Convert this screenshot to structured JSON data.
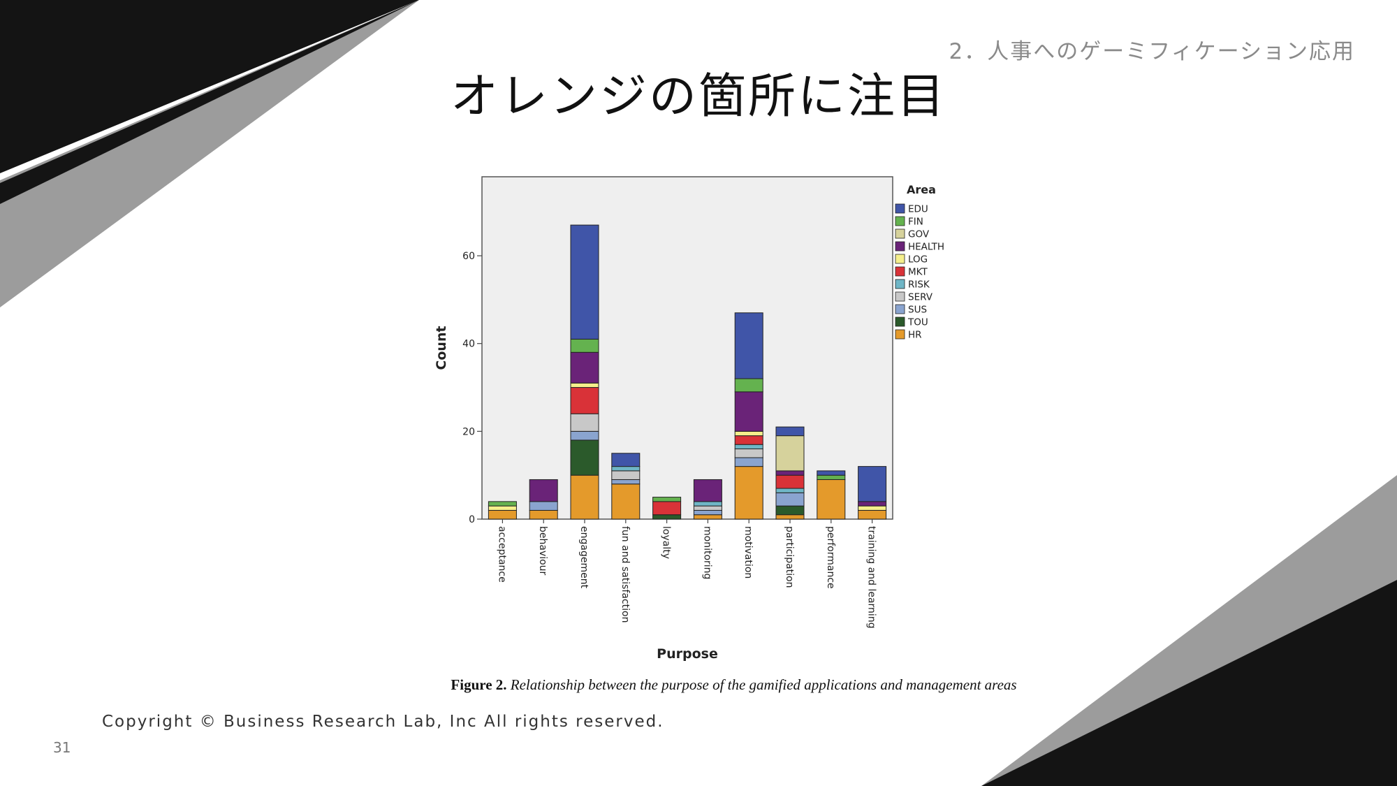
{
  "slide": {
    "section_label": "2．人事へのゲーミフィケーション応用",
    "title": "オレンジの箇所に注目",
    "copyright": "Copyright © Business Research Lab, Inc All rights reserved.",
    "page_number": "31"
  },
  "figure": {
    "caption_label": "Figure 2.",
    "caption_text": "Relationship between the purpose of the gamified applications and management areas"
  },
  "theme": {
    "decor_dark": "#141414",
    "decor_gray": "#9c9c9c",
    "plot_bg": "#efefef"
  },
  "chart_data": {
    "type": "bar",
    "stacked": true,
    "xlabel": "Purpose",
    "ylabel": "Count",
    "ylim": [
      0,
      78
    ],
    "yticks": [
      0,
      20,
      40,
      60
    ],
    "grid": false,
    "legend_title": "Area",
    "legend_position": "right",
    "categories": [
      "acceptance",
      "behaviour",
      "engagement",
      "fun and satisfaction",
      "loyalty",
      "monitoring",
      "motivation",
      "participation",
      "performance",
      "training and learning"
    ],
    "series": [
      {
        "name": "HR",
        "color": "#e49a2b",
        "values": [
          2,
          2,
          10,
          8,
          0,
          1,
          12,
          1,
          9,
          2
        ]
      },
      {
        "name": "TOU",
        "color": "#2b5a2b",
        "values": [
          0,
          0,
          8,
          0,
          1,
          0,
          0,
          2,
          0,
          0
        ]
      },
      {
        "name": "SUS",
        "color": "#8aa4cf",
        "values": [
          0,
          2,
          2,
          1,
          0,
          1,
          2,
          3,
          0,
          0
        ]
      },
      {
        "name": "SERV",
        "color": "#c8c8c8",
        "values": [
          0,
          0,
          4,
          2,
          0,
          1,
          2,
          0,
          0,
          0
        ]
      },
      {
        "name": "RISK",
        "color": "#6fb6c6",
        "values": [
          0,
          0,
          0,
          1,
          0,
          1,
          1,
          1,
          0,
          0
        ]
      },
      {
        "name": "MKT",
        "color": "#d93238",
        "values": [
          0,
          0,
          6,
          0,
          3,
          0,
          2,
          3,
          0,
          0
        ]
      },
      {
        "name": "LOG",
        "color": "#f5ef8c",
        "values": [
          1,
          0,
          1,
          0,
          0,
          0,
          1,
          0,
          0,
          1
        ]
      },
      {
        "name": "HEALTH",
        "color": "#6a2378",
        "values": [
          0,
          5,
          7,
          0,
          0,
          5,
          9,
          1,
          0,
          1
        ]
      },
      {
        "name": "GOV",
        "color": "#d6d29c",
        "values": [
          0,
          0,
          0,
          0,
          0,
          0,
          0,
          8,
          0,
          0
        ]
      },
      {
        "name": "FIN",
        "color": "#64b24f",
        "values": [
          1,
          0,
          3,
          0,
          1,
          0,
          3,
          0,
          1,
          0
        ]
      },
      {
        "name": "EDU",
        "color": "#4055a8",
        "values": [
          0,
          0,
          26,
          3,
          0,
          0,
          15,
          2,
          1,
          8
        ]
      }
    ],
    "legend_order": [
      "EDU",
      "FIN",
      "GOV",
      "HEALTH",
      "LOG",
      "MKT",
      "RISK",
      "SERV",
      "SUS",
      "TOU",
      "HR"
    ]
  }
}
